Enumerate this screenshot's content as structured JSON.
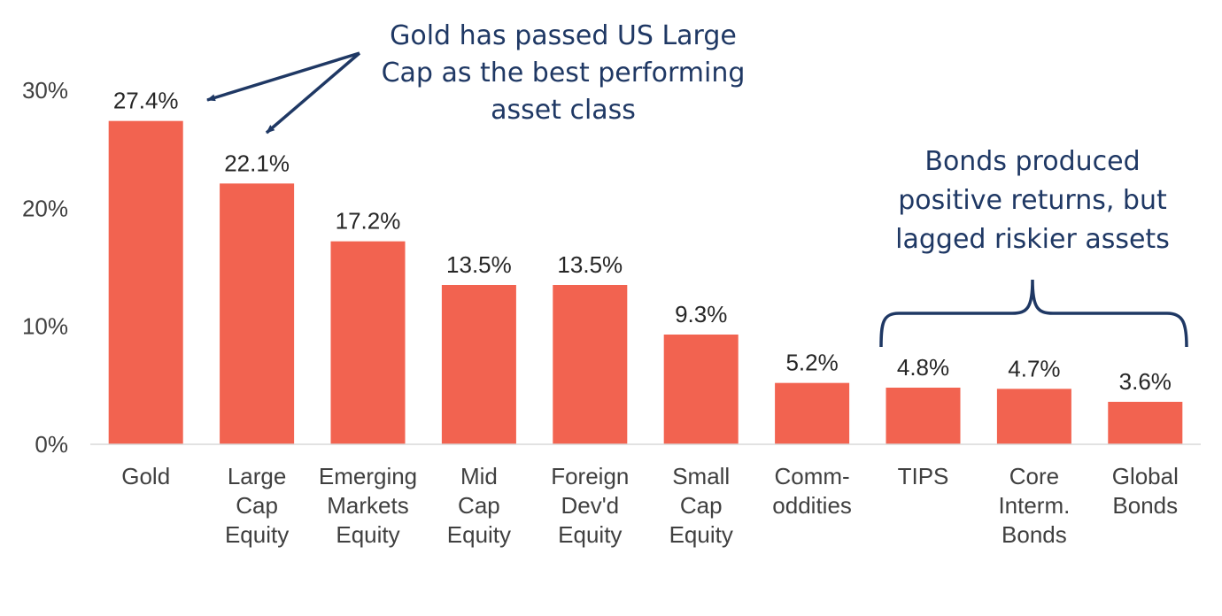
{
  "chart_data": {
    "type": "bar",
    "title": "",
    "xlabel": "",
    "ylabel": "",
    "ylim": [
      0,
      30
    ],
    "yticks": [
      0,
      10,
      20,
      30
    ],
    "ytick_labels": [
      "0%",
      "10%",
      "20%",
      "30%"
    ],
    "grid": false,
    "categories": [
      [
        "Gold"
      ],
      [
        "Large",
        "Cap",
        "Equity"
      ],
      [
        "Emerging",
        "Markets",
        "Equity"
      ],
      [
        "Mid",
        "Cap",
        "Equity"
      ],
      [
        "Foreign",
        "Dev'd",
        "Equity"
      ],
      [
        "Small",
        "Cap",
        "Equity"
      ],
      [
        "Comm-",
        "oddities"
      ],
      [
        "TIPS"
      ],
      [
        "Core",
        "Interm.",
        "Bonds"
      ],
      [
        "Global",
        "Bonds"
      ]
    ],
    "values": [
      27.4,
      22.1,
      17.2,
      13.5,
      13.5,
      9.3,
      5.2,
      4.8,
      4.7,
      3.6
    ],
    "data_labels": [
      "27.4%",
      "22.1%",
      "17.2%",
      "13.5%",
      "13.5%",
      "9.3%",
      "5.2%",
      "4.8%",
      "4.7%",
      "3.6%"
    ],
    "bar_color": "#f26350",
    "annotations": [
      {
        "lines": [
          "Gold has passed US Large",
          "Cap as the best performing",
          "asset class"
        ],
        "points_to": [
          "Gold",
          "Large Cap Equity"
        ],
        "color": "#1f3864"
      },
      {
        "lines": [
          "Bonds produced",
          "positive returns, but",
          "lagged riskier assets"
        ],
        "brackets": [
          "TIPS",
          "Core Interm. Bonds",
          "Global Bonds"
        ],
        "color": "#1f3864"
      }
    ]
  }
}
